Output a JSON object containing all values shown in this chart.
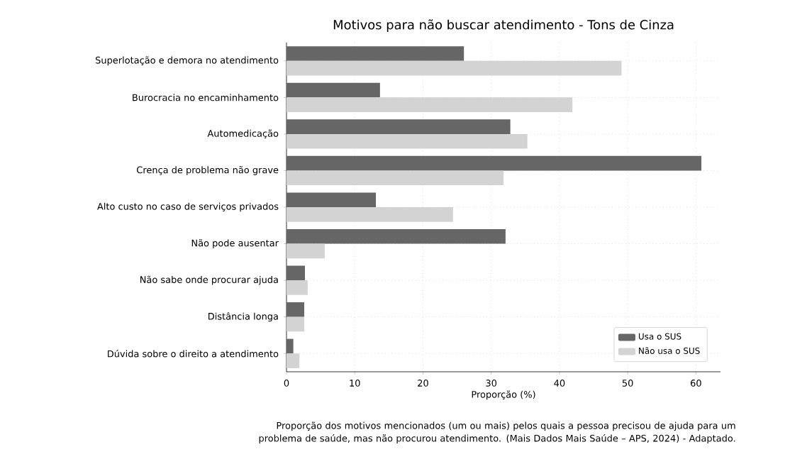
{
  "chart_data": {
    "type": "bar",
    "orientation": "horizontal",
    "title": "Motivos para não buscar atendimento - Tons de Cinza",
    "xlabel": "Proporção (%)",
    "categories": [
      "Superlotação e demora no atendimento",
      "Burocracia no encaminhamento",
      "Automedicação",
      "Crença de problema não grave",
      "Alto custo no caso de serviços privados",
      "Não pode ausentar",
      "Não sabe onde procurar ajuda",
      "Distância longa",
      "Dúvida sobre o direito a atendimento"
    ],
    "series": [
      {
        "name": "Usa o SUS",
        "color": "#666666",
        "values": [
          26.0,
          13.7,
          32.8,
          60.8,
          13.1,
          32.1,
          2.7,
          2.6,
          1.0
        ]
      },
      {
        "name": "Não usa o SUS",
        "color": "#d3d3d3",
        "values": [
          49.1,
          41.9,
          35.3,
          31.8,
          24.4,
          5.6,
          3.1,
          2.6,
          1.9
        ]
      }
    ],
    "xlim": [
      0,
      63.6
    ],
    "xticks": [
      0,
      10,
      20,
      30,
      40,
      50,
      60
    ],
    "grid": true,
    "legend": "bottom right",
    "annotations": [
      "Proporção dos motivos mencionados (um ou mais) pelos quais a pessoa precisou de ajuda para um problema de saúde, mas não procurou atendimento. (Mais Dados Mais Saúde – APS, 2024) - Adaptado."
    ]
  }
}
